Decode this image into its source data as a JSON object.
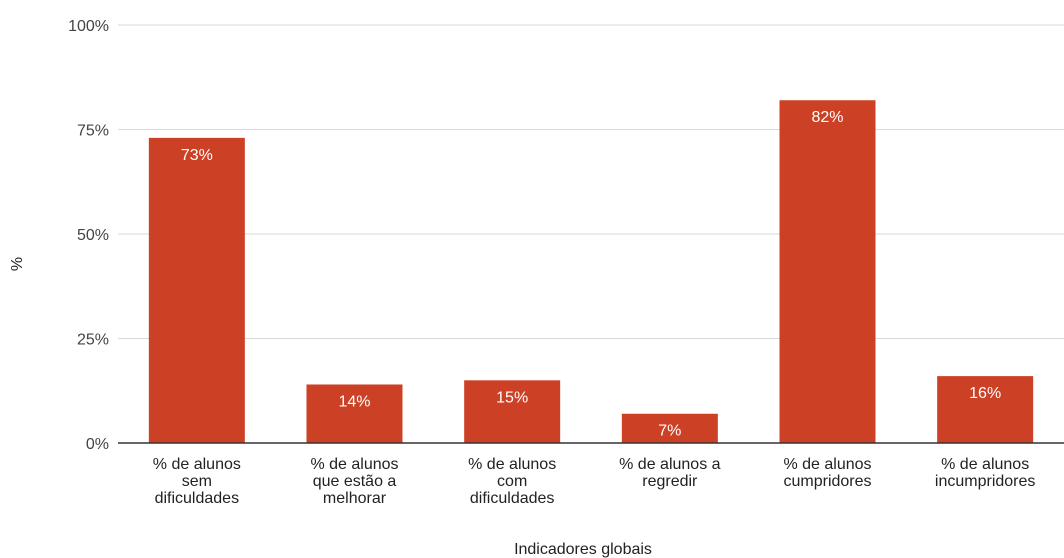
{
  "chart_data": {
    "type": "bar",
    "categories": [
      [
        "% de alunos",
        "sem",
        "dificuldades"
      ],
      [
        "% de alunos",
        "que estão a",
        "melhorar"
      ],
      [
        "% de alunos",
        "com",
        "dificuldades"
      ],
      [
        "% de alunos a",
        "regredir"
      ],
      [
        "% de alunos",
        "cumpridores"
      ],
      [
        "% de alunos",
        "incumpridores"
      ]
    ],
    "values": [
      73,
      14,
      15,
      7,
      82,
      16
    ],
    "data_labels": [
      "73%",
      "14%",
      "15%",
      "7%",
      "82%",
      "16%"
    ],
    "ylim": [
      0,
      100
    ],
    "yticks": [
      0,
      25,
      50,
      75,
      100
    ],
    "ytick_labels": [
      "0%",
      "25%",
      "50%",
      "75%",
      "100%"
    ],
    "xlabel": "Indicadores globais",
    "ylabel": "%",
    "grid": true,
    "legend": "none",
    "colors": {
      "bar": "#cc4125",
      "grid": "#d9d9d9",
      "axis": "#333333"
    }
  }
}
